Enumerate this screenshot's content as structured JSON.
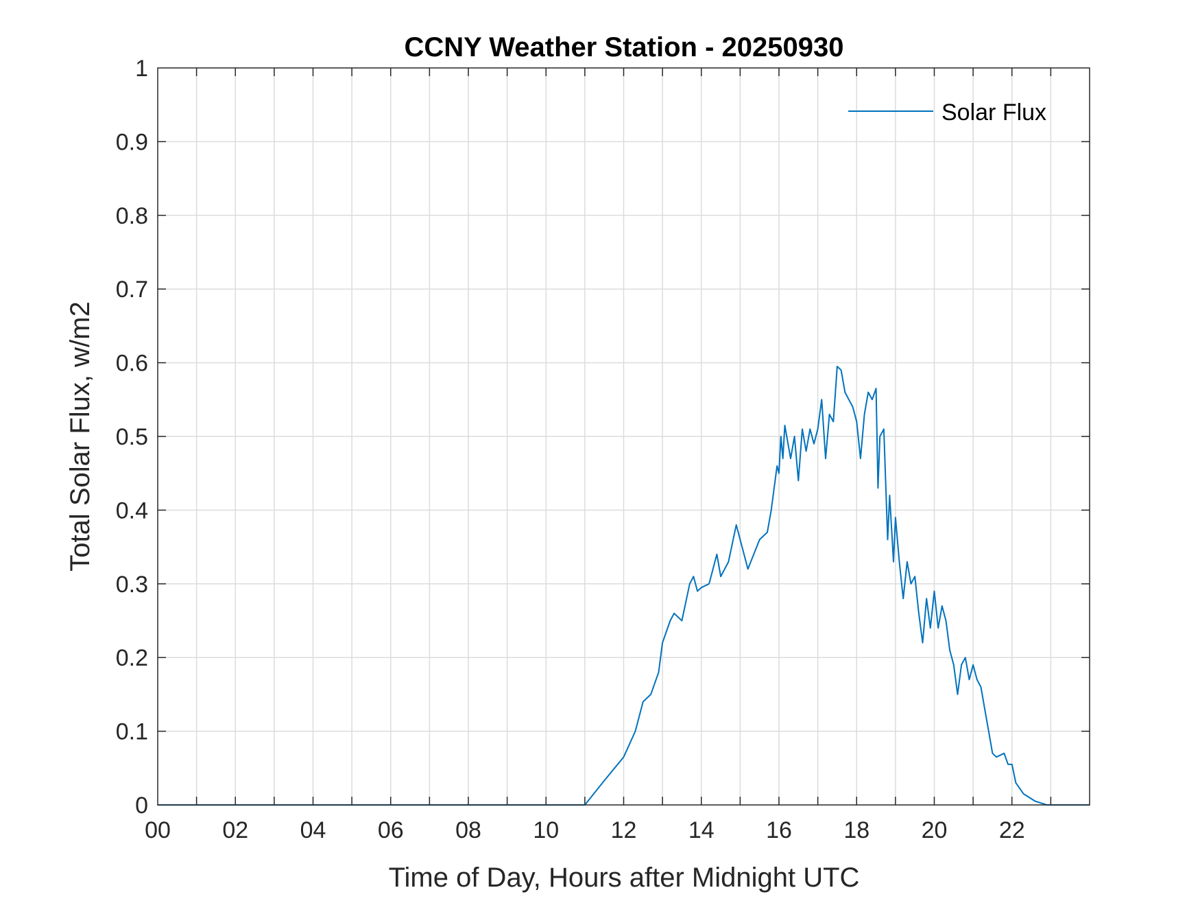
{
  "chart_data": {
    "type": "line",
    "title": "CCNY Weather Station - 20250930",
    "xlabel": "Time of Day, Hours after Midnight UTC",
    "ylabel": "Total Solar Flux, w/m2",
    "xlim": [
      0,
      24
    ],
    "ylim": [
      0,
      1
    ],
    "xticks": [
      0,
      2,
      4,
      6,
      8,
      10,
      12,
      14,
      16,
      18,
      20,
      22
    ],
    "xtick_labels": [
      "00",
      "02",
      "04",
      "06",
      "08",
      "10",
      "12",
      "14",
      "16",
      "18",
      "20",
      "22"
    ],
    "yticks": [
      0,
      0.1,
      0.2,
      0.3,
      0.4,
      0.5,
      0.6,
      0.7,
      0.8,
      0.9,
      1
    ],
    "ytick_labels": [
      "0",
      "0.1",
      "0.2",
      "0.3",
      "0.4",
      "0.5",
      "0.6",
      "0.7",
      "0.8",
      "0.9",
      "1"
    ],
    "grid": true,
    "legend_position": "top-right",
    "series": [
      {
        "name": "Solar Flux",
        "color": "#0072BD",
        "x": [
          0,
          11.0,
          11.5,
          12.0,
          12.3,
          12.5,
          12.7,
          12.9,
          13.0,
          13.2,
          13.3,
          13.5,
          13.7,
          13.8,
          13.9,
          14.0,
          14.2,
          14.4,
          14.5,
          14.7,
          14.9,
          15.0,
          15.2,
          15.5,
          15.7,
          15.8,
          15.95,
          16.0,
          16.05,
          16.1,
          16.15,
          16.3,
          16.4,
          16.5,
          16.6,
          16.7,
          16.8,
          16.9,
          17.0,
          17.1,
          17.2,
          17.3,
          17.4,
          17.5,
          17.6,
          17.7,
          17.8,
          17.9,
          18.0,
          18.1,
          18.2,
          18.3,
          18.4,
          18.5,
          18.55,
          18.6,
          18.7,
          18.8,
          18.85,
          18.95,
          19.0,
          19.1,
          19.2,
          19.3,
          19.4,
          19.5,
          19.6,
          19.7,
          19.8,
          19.9,
          20.0,
          20.1,
          20.2,
          20.3,
          20.4,
          20.5,
          20.6,
          20.7,
          20.8,
          20.9,
          21.0,
          21.1,
          21.2,
          21.3,
          21.4,
          21.5,
          21.6,
          21.8,
          21.9,
          22.0,
          22.1,
          22.3,
          22.6,
          22.9,
          24.0
        ],
        "y": [
          0,
          0,
          0.033,
          0.065,
          0.1,
          0.14,
          0.15,
          0.18,
          0.22,
          0.25,
          0.26,
          0.25,
          0.3,
          0.31,
          0.29,
          0.295,
          0.3,
          0.34,
          0.31,
          0.33,
          0.38,
          0.36,
          0.32,
          0.36,
          0.37,
          0.4,
          0.46,
          0.45,
          0.5,
          0.47,
          0.515,
          0.47,
          0.5,
          0.44,
          0.51,
          0.48,
          0.51,
          0.49,
          0.51,
          0.55,
          0.47,
          0.53,
          0.52,
          0.595,
          0.59,
          0.56,
          0.55,
          0.54,
          0.52,
          0.47,
          0.53,
          0.56,
          0.55,
          0.565,
          0.43,
          0.5,
          0.51,
          0.36,
          0.42,
          0.33,
          0.39,
          0.33,
          0.28,
          0.33,
          0.3,
          0.31,
          0.26,
          0.22,
          0.28,
          0.24,
          0.29,
          0.24,
          0.27,
          0.25,
          0.21,
          0.19,
          0.15,
          0.19,
          0.2,
          0.17,
          0.19,
          0.17,
          0.16,
          0.13,
          0.1,
          0.07,
          0.065,
          0.07,
          0.055,
          0.055,
          0.03,
          0.015,
          0.005,
          0,
          0
        ]
      }
    ]
  }
}
